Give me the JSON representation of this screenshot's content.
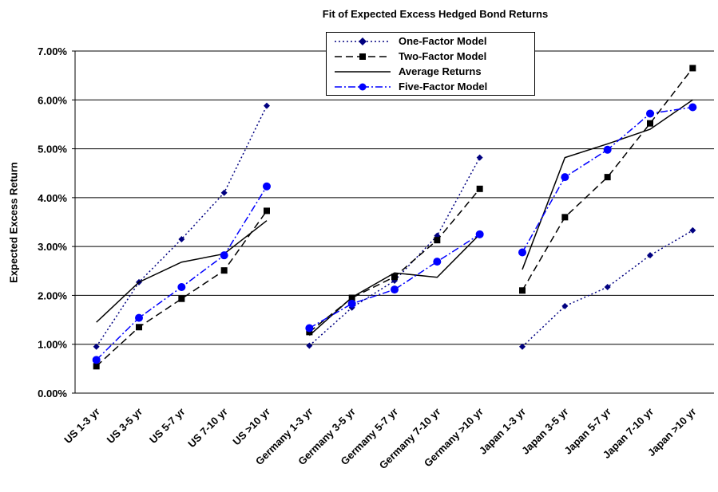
{
  "chart_data": {
    "type": "line",
    "title": "Fit of Expected Excess Hedged Bond Returns",
    "xlabel": "",
    "ylabel": "Expected Excess Return",
    "ylim": [
      0,
      7
    ],
    "yticks": [
      "0.00%",
      "1.00%",
      "2.00%",
      "3.00%",
      "4.00%",
      "5.00%",
      "6.00%",
      "7.00%"
    ],
    "legend_position": "top-center",
    "categories": [
      "US 1-3 yr",
      "US 3-5 yr",
      "US 5-7 yr",
      "US 7-10 yr",
      "US >10 yr",
      "Germany 1-3 yr",
      "Germany 3-5 yr",
      "Germany 5-7 yr",
      "Germany 7-10 yr",
      "Germany >10 yr",
      "Japan 1-3 yr",
      "Japan 3-5 yr",
      "Japan 5-7 yr",
      "Japan 7-10 yr",
      "Japan >10 yr"
    ],
    "groups": [
      [
        0,
        4
      ],
      [
        5,
        9
      ],
      [
        10,
        14
      ]
    ],
    "series": [
      {
        "name": "One-Factor Model",
        "color": "#000080",
        "dash": "2,3",
        "marker": "diamond",
        "values": [
          0.95,
          2.27,
          3.15,
          4.1,
          5.88,
          0.97,
          1.75,
          2.3,
          3.22,
          4.82,
          0.95,
          1.78,
          2.17,
          2.82,
          3.33
        ]
      },
      {
        "name": "Two-Factor Model",
        "color": "#000000",
        "dash": "9,5",
        "marker": "square",
        "values": [
          0.55,
          1.35,
          1.93,
          2.51,
          3.73,
          1.25,
          1.95,
          2.38,
          3.13,
          4.18,
          2.1,
          3.6,
          4.42,
          5.52,
          6.65
        ]
      },
      {
        "name": "Average Returns",
        "color": "#000000",
        "dash": "",
        "marker": "none",
        "values": [
          1.45,
          2.27,
          2.68,
          2.85,
          3.53,
          1.18,
          1.96,
          2.46,
          2.37,
          3.25,
          2.53,
          4.82,
          5.1,
          5.4,
          6.0
        ]
      },
      {
        "name": "Five-Factor Model",
        "color": "#0000FF",
        "dash": "9,3,2,3",
        "marker": "circle",
        "values": [
          0.68,
          1.54,
          2.17,
          2.82,
          4.23,
          1.33,
          1.83,
          2.12,
          2.69,
          3.25,
          2.88,
          4.42,
          4.98,
          5.72,
          5.85
        ]
      }
    ]
  }
}
